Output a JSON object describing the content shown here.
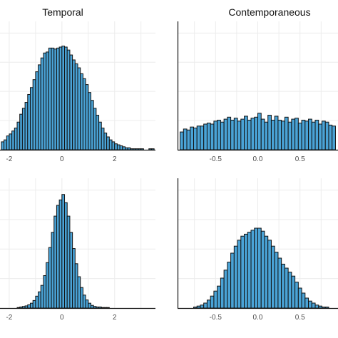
{
  "colors": {
    "bar_fill": "#4aa3d6",
    "bar_stroke": "#111111",
    "grid": "#ececec",
    "axis": "#111111"
  },
  "chart_data": [
    {
      "type": "bar",
      "panel": "top-left",
      "title": "Temporal",
      "xlabel": "",
      "ylabel": "",
      "grid": true,
      "xlim": [
        -2.35,
        3.55
      ],
      "ylim": [
        0,
        130
      ],
      "x_ticks": [
        -2,
        0,
        2
      ],
      "x_tick_labels": [
        "-2",
        "0",
        "2"
      ],
      "bin_centers": [
        -2.25,
        -2.15,
        -2.05,
        -1.95,
        -1.85,
        -1.75,
        -1.65,
        -1.55,
        -1.45,
        -1.35,
        -1.25,
        -1.15,
        -1.05,
        -0.95,
        -0.85,
        -0.75,
        -0.65,
        -0.55,
        -0.45,
        -0.35,
        -0.25,
        -0.15,
        -0.05,
        0.05,
        0.15,
        0.25,
        0.35,
        0.45,
        0.55,
        0.65,
        0.75,
        0.85,
        0.95,
        1.05,
        1.15,
        1.25,
        1.35,
        1.45,
        1.55,
        1.65,
        1.75,
        1.85,
        1.95,
        2.05,
        2.15,
        2.25,
        2.35,
        2.45,
        2.55,
        2.65,
        2.75,
        2.85,
        2.95,
        3.05,
        3.15,
        3.25,
        3.35,
        3.45
      ],
      "values": [
        8,
        10,
        14,
        16,
        19,
        22,
        28,
        36,
        42,
        48,
        56,
        63,
        71,
        79,
        86,
        93,
        98,
        99,
        103,
        103,
        102,
        103,
        104,
        105,
        104,
        101,
        96,
        91,
        87,
        83,
        77,
        72,
        66,
        58,
        50,
        42,
        35,
        28,
        22,
        17,
        13,
        10,
        8,
        6,
        5,
        4,
        3,
        2,
        2,
        1,
        1,
        1,
        1,
        1,
        0,
        0,
        1,
        1
      ]
    },
    {
      "type": "bar",
      "panel": "top-right",
      "title": "Contemporaneous",
      "xlabel": "",
      "ylabel": "",
      "grid": true,
      "xlim": [
        -0.95,
        0.95
      ],
      "ylim": [
        0,
        130
      ],
      "x_ticks": [
        -0.5,
        0.0,
        0.5
      ],
      "x_tick_labels": [
        "-0.5",
        "0.0",
        "0.5"
      ],
      "bin_centers": [
        -0.9,
        -0.86,
        -0.82,
        -0.78,
        -0.74,
        -0.7,
        -0.66,
        -0.62,
        -0.58,
        -0.54,
        -0.5,
        -0.46,
        -0.42,
        -0.38,
        -0.34,
        -0.3,
        -0.26,
        -0.22,
        -0.18,
        -0.14,
        -0.1,
        -0.06,
        -0.02,
        0.02,
        0.06,
        0.1,
        0.14,
        0.18,
        0.22,
        0.26,
        0.3,
        0.34,
        0.38,
        0.42,
        0.46,
        0.5,
        0.54,
        0.58,
        0.62,
        0.66,
        0.7,
        0.74,
        0.78,
        0.82,
        0.86,
        0.9
      ],
      "values": [
        18,
        21,
        20,
        23,
        22,
        24,
        24,
        26,
        27,
        26,
        29,
        30,
        28,
        31,
        33,
        30,
        32,
        29,
        31,
        34,
        30,
        32,
        33,
        37,
        31,
        28,
        35,
        30,
        34,
        30,
        29,
        33,
        28,
        31,
        32,
        27,
        30,
        29,
        31,
        28,
        30,
        26,
        29,
        28,
        25,
        24
      ]
    },
    {
      "type": "bar",
      "panel": "bottom-left",
      "title": "",
      "xlabel": "",
      "ylabel": "",
      "grid": true,
      "xlim": [
        -2.35,
        3.55
      ],
      "ylim": [
        0,
        240
      ],
      "x_ticks": [
        -2,
        0,
        2
      ],
      "x_tick_labels": [
        "-2",
        "0",
        "2"
      ],
      "bin_centers": [
        -1.65,
        -1.55,
        -1.45,
        -1.35,
        -1.25,
        -1.15,
        -1.05,
        -0.95,
        -0.85,
        -0.75,
        -0.65,
        -0.55,
        -0.45,
        -0.35,
        -0.25,
        -0.15,
        -0.05,
        0.05,
        0.15,
        0.25,
        0.35,
        0.45,
        0.55,
        0.65,
        0.75,
        0.85,
        0.95,
        1.05,
        1.15,
        1.25,
        1.35,
        1.45,
        1.55,
        1.65,
        1.75
      ],
      "values": [
        1,
        2,
        3,
        4,
        6,
        9,
        14,
        22,
        30,
        42,
        60,
        84,
        112,
        140,
        170,
        190,
        200,
        210,
        195,
        170,
        140,
        110,
        82,
        58,
        38,
        24,
        15,
        9,
        5,
        3,
        2,
        2,
        1,
        1,
        1
      ]
    },
    {
      "type": "bar",
      "panel": "bottom-right",
      "title": "",
      "xlabel": "",
      "ylabel": "",
      "grid": true,
      "xlim": [
        -0.95,
        0.95
      ],
      "ylim": [
        0,
        130
      ],
      "x_ticks": [
        -0.5,
        0.0,
        0.5
      ],
      "x_tick_labels": [
        "-0.5",
        "0.0",
        "0.5"
      ],
      "bin_centers": [
        -0.9,
        -0.86,
        -0.82,
        -0.78,
        -0.74,
        -0.7,
        -0.66,
        -0.62,
        -0.58,
        -0.54,
        -0.5,
        -0.46,
        -0.42,
        -0.38,
        -0.34,
        -0.3,
        -0.26,
        -0.22,
        -0.18,
        -0.14,
        -0.1,
        -0.06,
        -0.02,
        0.02,
        0.06,
        0.1,
        0.14,
        0.18,
        0.22,
        0.26,
        0.3,
        0.34,
        0.38,
        0.42,
        0.46,
        0.5,
        0.54,
        0.58,
        0.62,
        0.66,
        0.7,
        0.74,
        0.78,
        0.82,
        0.86,
        0.9
      ],
      "values": [
        0,
        0,
        0,
        0,
        1,
        2,
        3,
        5,
        8,
        12,
        17,
        22,
        30,
        38,
        46,
        55,
        62,
        68,
        72,
        74,
        76,
        78,
        80,
        80,
        77,
        72,
        68,
        62,
        56,
        50,
        44,
        40,
        36,
        32,
        26,
        20,
        15,
        10,
        7,
        5,
        3,
        2,
        1,
        1,
        0,
        0
      ]
    }
  ]
}
